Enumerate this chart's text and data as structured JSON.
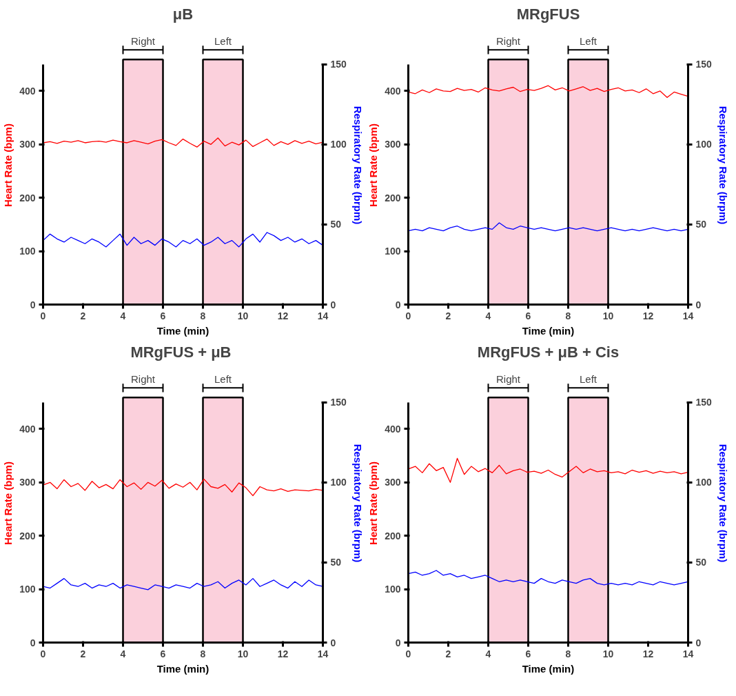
{
  "chart_data": [
    {
      "type": "line",
      "title": "μB",
      "xlabel": "Time (min)",
      "ylabel": "Heart Rate (bpm)",
      "y2label": "Respiratory Rate (brpm)",
      "xlim": [
        0,
        14
      ],
      "xticks": [
        0,
        2,
        4,
        6,
        8,
        10,
        12,
        14
      ],
      "ylim": [
        0,
        450
      ],
      "yticks": [
        0,
        100,
        200,
        300,
        400
      ],
      "y2lim": [
        0,
        150
      ],
      "y2ticks": [
        0,
        50,
        100,
        150
      ],
      "grid": false,
      "line_style": "solid",
      "marker": "none",
      "x": [
        0,
        0.35,
        0.7,
        1.05,
        1.4,
        1.75,
        2.1,
        2.45,
        2.8,
        3.15,
        3.5,
        3.85,
        4.2,
        4.55,
        4.9,
        5.25,
        5.6,
        5.95,
        6.3,
        6.65,
        7,
        7.35,
        7.7,
        8.05,
        8.4,
        8.75,
        9.1,
        9.45,
        9.8,
        10.15,
        10.5,
        10.85,
        11.2,
        11.55,
        11.9,
        12.25,
        12.6,
        12.95,
        13.3,
        13.65,
        14
      ],
      "bands": [
        {
          "axis": "x",
          "from": 4,
          "to": 6,
          "label": "Right",
          "color": "#fbd0dc"
        },
        {
          "axis": "x",
          "from": 8,
          "to": 10,
          "label": "Left",
          "color": "#fbd0dc"
        }
      ],
      "series": [
        {
          "color": "#ff0000",
          "values": [
            303,
            305,
            302,
            306,
            304,
            307,
            303,
            305,
            306,
            304,
            308,
            305,
            303,
            307,
            304,
            301,
            306,
            309,
            303,
            298,
            310,
            302,
            295,
            306,
            300,
            312,
            297,
            304,
            299,
            308,
            296,
            303,
            310,
            298,
            305,
            300,
            307,
            302,
            306,
            301,
            304
          ]
        },
        {
          "color": "#0000ff",
          "axis": "y2",
          "values": [
            40,
            44,
            41,
            39,
            42,
            40,
            38,
            41,
            39,
            36,
            40,
            44,
            37,
            42,
            38,
            40,
            37,
            41,
            39,
            36,
            40,
            38,
            41,
            37,
            39,
            42,
            38,
            40,
            36,
            41,
            44,
            39,
            45,
            43,
            40,
            42,
            39,
            41,
            38,
            40,
            37
          ]
        }
      ]
    },
    {
      "type": "line",
      "title": "MRgFUS",
      "xlabel": "Time (min)",
      "ylabel": "Heart Rate (bpm)",
      "y2label": "Respiratory Rate (brpm)",
      "xlim": [
        0,
        14
      ],
      "xticks": [
        0,
        2,
        4,
        6,
        8,
        10,
        12,
        14
      ],
      "ylim": [
        0,
        450
      ],
      "yticks": [
        0,
        100,
        200,
        300,
        400
      ],
      "y2lim": [
        0,
        150
      ],
      "y2ticks": [
        0,
        50,
        100,
        150
      ],
      "grid": false,
      "line_style": "solid",
      "marker": "none",
      "x": [
        0,
        0.35,
        0.7,
        1.05,
        1.4,
        1.75,
        2.1,
        2.45,
        2.8,
        3.15,
        3.5,
        3.85,
        4.2,
        4.55,
        4.9,
        5.25,
        5.6,
        5.95,
        6.3,
        6.65,
        7,
        7.35,
        7.7,
        8.05,
        8.4,
        8.75,
        9.1,
        9.45,
        9.8,
        10.15,
        10.5,
        10.85,
        11.2,
        11.55,
        11.9,
        12.25,
        12.6,
        12.95,
        13.3,
        13.65,
        14
      ],
      "bands": [
        {
          "axis": "x",
          "from": 4,
          "to": 6,
          "label": "Right",
          "color": "#fbd0dc"
        },
        {
          "axis": "x",
          "from": 8,
          "to": 10,
          "label": "Left",
          "color": "#fbd0dc"
        }
      ],
      "series": [
        {
          "color": "#ff0000",
          "values": [
            398,
            395,
            402,
            397,
            404,
            400,
            399,
            405,
            401,
            403,
            398,
            406,
            402,
            400,
            404,
            407,
            399,
            403,
            401,
            405,
            410,
            402,
            406,
            400,
            404,
            408,
            401,
            405,
            399,
            403,
            406,
            400,
            402,
            397,
            404,
            395,
            400,
            388,
            398,
            394,
            390
          ]
        },
        {
          "color": "#0000ff",
          "axis": "y2",
          "values": [
            46,
            47,
            46,
            48,
            47,
            46,
            48,
            49,
            47,
            46,
            47,
            48,
            47,
            51,
            48,
            47,
            49,
            48,
            47,
            48,
            47,
            46,
            47,
            48,
            47,
            48,
            47,
            46,
            47,
            48,
            47,
            46,
            47,
            46,
            47,
            48,
            47,
            46,
            47,
            46,
            47
          ]
        }
      ]
    },
    {
      "type": "line",
      "title": "MRgFUS +  μB",
      "xlabel": "Time (min)",
      "ylabel": "Heart Rate (bpm)",
      "y2label": "Respiratory Rate (brpm)",
      "xlim": [
        0,
        14
      ],
      "xticks": [
        0,
        2,
        4,
        6,
        8,
        10,
        12,
        14
      ],
      "ylim": [
        0,
        450
      ],
      "yticks": [
        0,
        100,
        200,
        300,
        400
      ],
      "y2lim": [
        0,
        150
      ],
      "y2ticks": [
        0,
        50,
        100,
        150
      ],
      "grid": false,
      "line_style": "solid",
      "marker": "none",
      "x": [
        0,
        0.35,
        0.7,
        1.05,
        1.4,
        1.75,
        2.1,
        2.45,
        2.8,
        3.15,
        3.5,
        3.85,
        4.2,
        4.55,
        4.9,
        5.25,
        5.6,
        5.95,
        6.3,
        6.65,
        7,
        7.35,
        7.7,
        8.05,
        8.4,
        8.75,
        9.1,
        9.45,
        9.8,
        10.15,
        10.5,
        10.85,
        11.2,
        11.55,
        11.9,
        12.25,
        12.6,
        12.95,
        13.3,
        13.65,
        14
      ],
      "bands": [
        {
          "axis": "x",
          "from": 4,
          "to": 6,
          "label": "Right",
          "color": "#fbd0dc"
        },
        {
          "axis": "x",
          "from": 8,
          "to": 10,
          "label": "Left",
          "color": "#fbd0dc"
        }
      ],
      "series": [
        {
          "color": "#ff0000",
          "values": [
            295,
            300,
            288,
            305,
            292,
            298,
            285,
            302,
            290,
            296,
            288,
            305,
            292,
            299,
            287,
            300,
            293,
            304,
            289,
            297,
            291,
            300,
            286,
            306,
            292,
            289,
            296,
            282,
            299,
            290,
            275,
            292,
            286,
            284,
            288,
            283,
            286,
            285,
            284,
            287,
            285
          ]
        },
        {
          "color": "#0000ff",
          "axis": "y2",
          "values": [
            35,
            34,
            37,
            40,
            36,
            35,
            37,
            34,
            36,
            35,
            37,
            34,
            36,
            35,
            34,
            33,
            36,
            35,
            34,
            36,
            35,
            34,
            37,
            35,
            36,
            38,
            34,
            37,
            39,
            36,
            40,
            35,
            37,
            39,
            36,
            34,
            38,
            35,
            39,
            36,
            35
          ]
        }
      ]
    },
    {
      "type": "line",
      "title": "MRgFUS + μB + Cis",
      "xlabel": "Time (min)",
      "ylabel": "Heart Rate (bpm)",
      "y2label": "Respiratory Rate (brpm)",
      "xlim": [
        0,
        14
      ],
      "xticks": [
        0,
        2,
        4,
        6,
        8,
        10,
        12,
        14
      ],
      "ylim": [
        0,
        450
      ],
      "yticks": [
        0,
        100,
        200,
        300,
        400
      ],
      "y2lim": [
        0,
        150
      ],
      "y2ticks": [
        0,
        50,
        100,
        150
      ],
      "grid": false,
      "line_style": "solid",
      "marker": "none",
      "x": [
        0,
        0.35,
        0.7,
        1.05,
        1.4,
        1.75,
        2.1,
        2.45,
        2.8,
        3.15,
        3.5,
        3.85,
        4.2,
        4.55,
        4.9,
        5.25,
        5.6,
        5.95,
        6.3,
        6.65,
        7,
        7.35,
        7.7,
        8.05,
        8.4,
        8.75,
        9.1,
        9.45,
        9.8,
        10.15,
        10.5,
        10.85,
        11.2,
        11.55,
        11.9,
        12.25,
        12.6,
        12.95,
        13.3,
        13.65,
        14
      ],
      "bands": [
        {
          "axis": "x",
          "from": 4,
          "to": 6,
          "label": "Right",
          "color": "#fbd0dc"
        },
        {
          "axis": "x",
          "from": 8,
          "to": 10,
          "label": "Left",
          "color": "#fbd0dc"
        }
      ],
      "series": [
        {
          "color": "#ff0000",
          "values": [
            325,
            330,
            318,
            335,
            322,
            328,
            300,
            345,
            315,
            330,
            320,
            326,
            318,
            332,
            316,
            322,
            325,
            319,
            321,
            317,
            323,
            315,
            310,
            320,
            330,
            318,
            325,
            320,
            322,
            318,
            320,
            316,
            323,
            319,
            322,
            317,
            321,
            318,
            320,
            316,
            319
          ]
        },
        {
          "color": "#0000ff",
          "axis": "y2",
          "values": [
            43,
            44,
            42,
            43,
            45,
            42,
            43,
            41,
            42,
            40,
            41,
            42,
            40,
            38,
            39,
            38,
            39,
            38,
            37,
            40,
            38,
            37,
            39,
            38,
            37,
            39,
            40,
            37,
            36,
            37,
            36,
            37,
            36,
            38,
            37,
            36,
            38,
            37,
            36,
            37,
            38
          ]
        }
      ]
    }
  ]
}
